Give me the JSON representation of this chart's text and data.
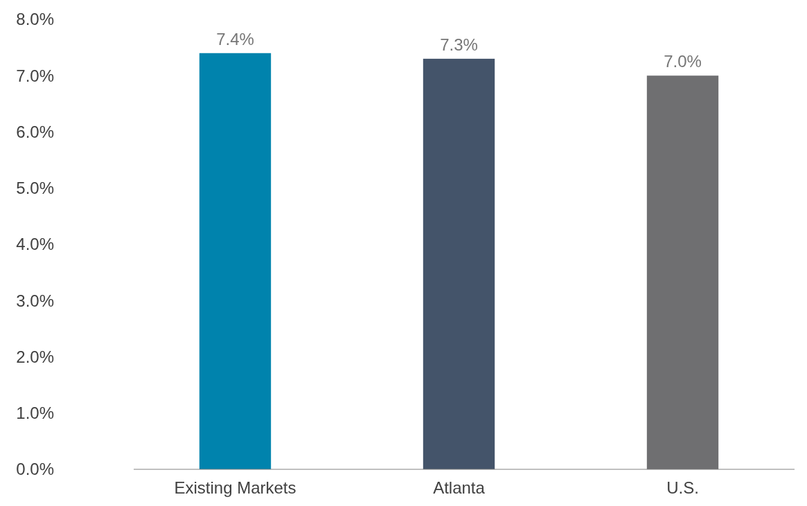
{
  "chart_data": {
    "type": "bar",
    "categories": [
      "Existing Markets",
      "Atlanta",
      "U.S."
    ],
    "values": [
      7.4,
      7.3,
      7.0
    ],
    "colors": [
      "#0083ad",
      "#44546a",
      "#6f6f71"
    ],
    "ylim": [
      0,
      8
    ],
    "yticks": [
      {
        "value": 0,
        "label": "0.0%"
      },
      {
        "value": 1,
        "label": "1.0%"
      },
      {
        "value": 2,
        "label": "2.0%"
      },
      {
        "value": 3,
        "label": "3.0%"
      },
      {
        "value": 4,
        "label": "4.0%"
      },
      {
        "value": 5,
        "label": "5.0%"
      },
      {
        "value": 6,
        "label": "6.0%"
      },
      {
        "value": 7,
        "label": "7.0%"
      },
      {
        "value": 8,
        "label": "8.0%"
      }
    ],
    "value_labels": [
      "7.4%",
      "7.3%",
      "7.0%"
    ],
    "grid": false
  }
}
